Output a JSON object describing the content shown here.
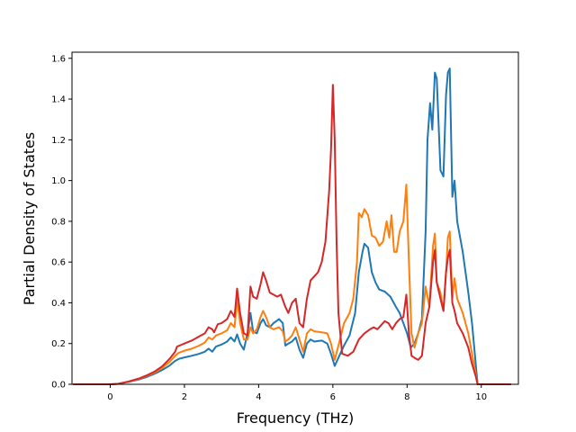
{
  "chart_data": {
    "type": "line",
    "title": "",
    "xlabel": "Frequency (THz)",
    "ylabel": "Partial Density of States",
    "xlim": [
      -1.03,
      11.0
    ],
    "ylim": [
      0.0,
      1.63
    ],
    "xticks": [
      0,
      2,
      4,
      6,
      8,
      10
    ],
    "xtick_labels": [
      "0",
      "2",
      "4",
      "6",
      "8",
      "10"
    ],
    "yticks": [
      0.0,
      0.2,
      0.4,
      0.6,
      0.8,
      1.0,
      1.2,
      1.4,
      1.6
    ],
    "ytick_labels": [
      "0.0",
      "0.2",
      "0.4",
      "0.6",
      "0.8",
      "1.0",
      "1.2",
      "1.4",
      "1.6"
    ],
    "grid": false,
    "legend": false,
    "series": [
      {
        "color": "#1f77b4",
        "points": [
          [
            -1.0,
            0.0
          ],
          [
            0.0,
            0.0
          ],
          [
            0.2,
            0.002
          ],
          [
            0.5,
            0.012
          ],
          [
            0.8,
            0.025
          ],
          [
            1.0,
            0.037
          ],
          [
            1.2,
            0.052
          ],
          [
            1.4,
            0.07
          ],
          [
            1.6,
            0.092
          ],
          [
            1.75,
            0.115
          ],
          [
            1.85,
            0.125
          ],
          [
            2.0,
            0.132
          ],
          [
            2.2,
            0.14
          ],
          [
            2.4,
            0.15
          ],
          [
            2.55,
            0.16
          ],
          [
            2.65,
            0.175
          ],
          [
            2.75,
            0.16
          ],
          [
            2.85,
            0.185
          ],
          [
            3.0,
            0.195
          ],
          [
            3.15,
            0.21
          ],
          [
            3.25,
            0.23
          ],
          [
            3.35,
            0.21
          ],
          [
            3.42,
            0.245
          ],
          [
            3.5,
            0.2
          ],
          [
            3.6,
            0.17
          ],
          [
            3.7,
            0.25
          ],
          [
            3.78,
            0.35
          ],
          [
            3.85,
            0.26
          ],
          [
            3.95,
            0.25
          ],
          [
            4.05,
            0.3
          ],
          [
            4.12,
            0.32
          ],
          [
            4.2,
            0.29
          ],
          [
            4.3,
            0.28
          ],
          [
            4.4,
            0.3
          ],
          [
            4.55,
            0.32
          ],
          [
            4.65,
            0.3
          ],
          [
            4.72,
            0.19
          ],
          [
            4.8,
            0.2
          ],
          [
            4.9,
            0.21
          ],
          [
            5.0,
            0.23
          ],
          [
            5.1,
            0.17
          ],
          [
            5.2,
            0.13
          ],
          [
            5.3,
            0.2
          ],
          [
            5.4,
            0.22
          ],
          [
            5.5,
            0.21
          ],
          [
            5.7,
            0.215
          ],
          [
            5.85,
            0.2
          ],
          [
            5.95,
            0.15
          ],
          [
            6.05,
            0.09
          ],
          [
            6.15,
            0.13
          ],
          [
            6.3,
            0.19
          ],
          [
            6.45,
            0.24
          ],
          [
            6.6,
            0.35
          ],
          [
            6.7,
            0.55
          ],
          [
            6.8,
            0.65
          ],
          [
            6.85,
            0.69
          ],
          [
            6.95,
            0.67
          ],
          [
            7.05,
            0.55
          ],
          [
            7.15,
            0.5
          ],
          [
            7.25,
            0.465
          ],
          [
            7.4,
            0.455
          ],
          [
            7.55,
            0.43
          ],
          [
            7.7,
            0.38
          ],
          [
            7.8,
            0.35
          ],
          [
            7.9,
            0.3
          ],
          [
            8.0,
            0.25
          ],
          [
            8.1,
            0.18
          ],
          [
            8.2,
            0.2
          ],
          [
            8.3,
            0.25
          ],
          [
            8.4,
            0.32
          ],
          [
            8.5,
            0.75
          ],
          [
            8.55,
            1.2
          ],
          [
            8.62,
            1.38
          ],
          [
            8.68,
            1.25
          ],
          [
            8.75,
            1.53
          ],
          [
            8.8,
            1.5
          ],
          [
            8.9,
            1.05
          ],
          [
            8.98,
            1.02
          ],
          [
            9.05,
            1.42
          ],
          [
            9.1,
            1.53
          ],
          [
            9.15,
            1.55
          ],
          [
            9.22,
            0.92
          ],
          [
            9.28,
            1.0
          ],
          [
            9.35,
            0.8
          ],
          [
            9.5,
            0.65
          ],
          [
            9.65,
            0.45
          ],
          [
            9.75,
            0.3
          ],
          [
            9.85,
            0.1
          ],
          [
            9.9,
            0.0
          ],
          [
            10.8,
            0.0
          ]
        ]
      },
      {
        "color": "#ff7f0e",
        "points": [
          [
            -1.0,
            0.0
          ],
          [
            0.0,
            0.0
          ],
          [
            0.2,
            0.002
          ],
          [
            0.5,
            0.013
          ],
          [
            0.8,
            0.028
          ],
          [
            1.0,
            0.042
          ],
          [
            1.2,
            0.058
          ],
          [
            1.4,
            0.08
          ],
          [
            1.6,
            0.11
          ],
          [
            1.75,
            0.14
          ],
          [
            1.85,
            0.155
          ],
          [
            2.0,
            0.165
          ],
          [
            2.2,
            0.175
          ],
          [
            2.4,
            0.19
          ],
          [
            2.55,
            0.205
          ],
          [
            2.65,
            0.23
          ],
          [
            2.75,
            0.22
          ],
          [
            2.85,
            0.24
          ],
          [
            3.0,
            0.25
          ],
          [
            3.15,
            0.265
          ],
          [
            3.25,
            0.3
          ],
          [
            3.35,
            0.28
          ],
          [
            3.42,
            0.42
          ],
          [
            3.5,
            0.3
          ],
          [
            3.6,
            0.22
          ],
          [
            3.7,
            0.22
          ],
          [
            3.78,
            0.28
          ],
          [
            3.85,
            0.25
          ],
          [
            3.95,
            0.27
          ],
          [
            4.05,
            0.33
          ],
          [
            4.12,
            0.36
          ],
          [
            4.2,
            0.33
          ],
          [
            4.3,
            0.28
          ],
          [
            4.4,
            0.27
          ],
          [
            4.55,
            0.28
          ],
          [
            4.65,
            0.26
          ],
          [
            4.72,
            0.21
          ],
          [
            4.8,
            0.22
          ],
          [
            4.9,
            0.24
          ],
          [
            5.0,
            0.28
          ],
          [
            5.1,
            0.22
          ],
          [
            5.2,
            0.16
          ],
          [
            5.3,
            0.25
          ],
          [
            5.4,
            0.27
          ],
          [
            5.5,
            0.26
          ],
          [
            5.7,
            0.255
          ],
          [
            5.85,
            0.25
          ],
          [
            5.95,
            0.2
          ],
          [
            6.05,
            0.12
          ],
          [
            6.15,
            0.19
          ],
          [
            6.3,
            0.3
          ],
          [
            6.45,
            0.35
          ],
          [
            6.55,
            0.42
          ],
          [
            6.65,
            0.6
          ],
          [
            6.7,
            0.84
          ],
          [
            6.78,
            0.82
          ],
          [
            6.85,
            0.86
          ],
          [
            6.95,
            0.83
          ],
          [
            7.05,
            0.73
          ],
          [
            7.15,
            0.72
          ],
          [
            7.25,
            0.68
          ],
          [
            7.35,
            0.7
          ],
          [
            7.45,
            0.8
          ],
          [
            7.52,
            0.72
          ],
          [
            7.58,
            0.83
          ],
          [
            7.65,
            0.65
          ],
          [
            7.72,
            0.65
          ],
          [
            7.8,
            0.75
          ],
          [
            7.9,
            0.8
          ],
          [
            7.98,
            0.98
          ],
          [
            8.05,
            0.6
          ],
          [
            8.12,
            0.25
          ],
          [
            8.2,
            0.18
          ],
          [
            8.3,
            0.25
          ],
          [
            8.4,
            0.3
          ],
          [
            8.5,
            0.48
          ],
          [
            8.6,
            0.38
          ],
          [
            8.7,
            0.68
          ],
          [
            8.75,
            0.74
          ],
          [
            8.8,
            0.5
          ],
          [
            8.9,
            0.45
          ],
          [
            8.98,
            0.36
          ],
          [
            9.05,
            0.55
          ],
          [
            9.1,
            0.72
          ],
          [
            9.15,
            0.75
          ],
          [
            9.22,
            0.42
          ],
          [
            9.28,
            0.52
          ],
          [
            9.35,
            0.42
          ],
          [
            9.5,
            0.35
          ],
          [
            9.65,
            0.25
          ],
          [
            9.75,
            0.15
          ],
          [
            9.85,
            0.05
          ],
          [
            9.9,
            0.0
          ],
          [
            10.8,
            0.0
          ]
        ]
      },
      {
        "color": "#d62728",
        "points": [
          [
            -1.0,
            0.0
          ],
          [
            0.0,
            0.0
          ],
          [
            0.2,
            0.002
          ],
          [
            0.5,
            0.014
          ],
          [
            0.8,
            0.03
          ],
          [
            1.0,
            0.045
          ],
          [
            1.2,
            0.063
          ],
          [
            1.4,
            0.088
          ],
          [
            1.6,
            0.125
          ],
          [
            1.75,
            0.16
          ],
          [
            1.8,
            0.185
          ],
          [
            2.0,
            0.2
          ],
          [
            2.2,
            0.215
          ],
          [
            2.4,
            0.235
          ],
          [
            2.55,
            0.25
          ],
          [
            2.65,
            0.28
          ],
          [
            2.75,
            0.27
          ],
          [
            2.8,
            0.255
          ],
          [
            2.9,
            0.295
          ],
          [
            3.0,
            0.3
          ],
          [
            3.15,
            0.32
          ],
          [
            3.25,
            0.36
          ],
          [
            3.35,
            0.33
          ],
          [
            3.42,
            0.47
          ],
          [
            3.5,
            0.35
          ],
          [
            3.6,
            0.25
          ],
          [
            3.7,
            0.24
          ],
          [
            3.78,
            0.48
          ],
          [
            3.85,
            0.43
          ],
          [
            3.95,
            0.42
          ],
          [
            4.05,
            0.49
          ],
          [
            4.12,
            0.55
          ],
          [
            4.2,
            0.51
          ],
          [
            4.3,
            0.45
          ],
          [
            4.4,
            0.44
          ],
          [
            4.5,
            0.43
          ],
          [
            4.6,
            0.44
          ],
          [
            4.72,
            0.38
          ],
          [
            4.8,
            0.35
          ],
          [
            4.9,
            0.4
          ],
          [
            5.0,
            0.42
          ],
          [
            5.1,
            0.3
          ],
          [
            5.2,
            0.28
          ],
          [
            5.3,
            0.42
          ],
          [
            5.4,
            0.51
          ],
          [
            5.5,
            0.53
          ],
          [
            5.6,
            0.55
          ],
          [
            5.7,
            0.6
          ],
          [
            5.8,
            0.7
          ],
          [
            5.9,
            0.95
          ],
          [
            5.95,
            1.15
          ],
          [
            6.0,
            1.47
          ],
          [
            6.05,
            1.2
          ],
          [
            6.1,
            0.7
          ],
          [
            6.15,
            0.35
          ],
          [
            6.25,
            0.15
          ],
          [
            6.4,
            0.14
          ],
          [
            6.55,
            0.16
          ],
          [
            6.7,
            0.22
          ],
          [
            6.85,
            0.25
          ],
          [
            7.0,
            0.27
          ],
          [
            7.1,
            0.28
          ],
          [
            7.2,
            0.27
          ],
          [
            7.3,
            0.29
          ],
          [
            7.4,
            0.31
          ],
          [
            7.5,
            0.3
          ],
          [
            7.6,
            0.27
          ],
          [
            7.7,
            0.3
          ],
          [
            7.8,
            0.32
          ],
          [
            7.9,
            0.33
          ],
          [
            7.98,
            0.44
          ],
          [
            8.05,
            0.25
          ],
          [
            8.12,
            0.14
          ],
          [
            8.2,
            0.13
          ],
          [
            8.3,
            0.12
          ],
          [
            8.4,
            0.14
          ],
          [
            8.5,
            0.3
          ],
          [
            8.6,
            0.38
          ],
          [
            8.7,
            0.6
          ],
          [
            8.75,
            0.66
          ],
          [
            8.8,
            0.5
          ],
          [
            8.9,
            0.42
          ],
          [
            8.98,
            0.36
          ],
          [
            9.05,
            0.55
          ],
          [
            9.1,
            0.62
          ],
          [
            9.15,
            0.66
          ],
          [
            9.22,
            0.4
          ],
          [
            9.28,
            0.36
          ],
          [
            9.35,
            0.3
          ],
          [
            9.5,
            0.25
          ],
          [
            9.65,
            0.18
          ],
          [
            9.75,
            0.1
          ],
          [
            9.85,
            0.04
          ],
          [
            9.9,
            0.0
          ],
          [
            10.8,
            0.0
          ]
        ]
      }
    ]
  }
}
